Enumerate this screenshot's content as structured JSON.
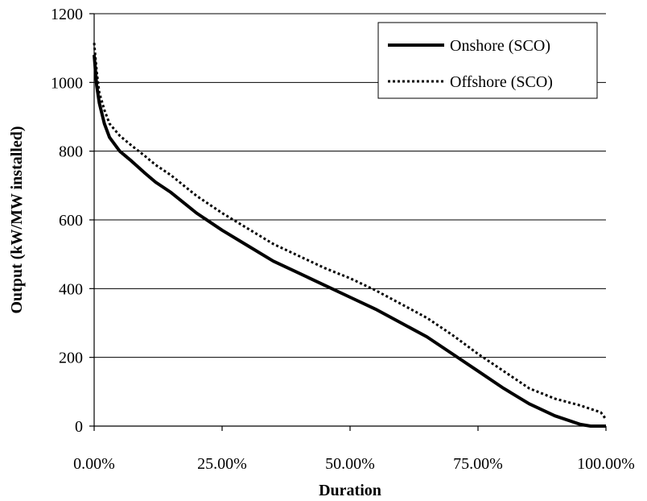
{
  "chart_data": {
    "type": "line",
    "title": "",
    "xlabel": "Duration",
    "ylabel": "Output (kW/MW installed)",
    "xlim": [
      0,
      100
    ],
    "ylim": [
      0,
      1200
    ],
    "x_tick_values": [
      0,
      25,
      50,
      75,
      100
    ],
    "x_tick_labels": [
      "0.00%",
      "25.00%",
      "50.00%",
      "75.00%",
      "100.00%"
    ],
    "y_tick_values": [
      0,
      200,
      400,
      600,
      800,
      1000,
      1200
    ],
    "y_tick_labels": [
      "0",
      "200",
      "400",
      "600",
      "800",
      "1000",
      "1200"
    ],
    "grid": "horizontal",
    "legend_position": "top-right",
    "series": [
      {
        "name": "Onshore (SCO)",
        "style": "solid",
        "color": "#000000",
        "x": [
          0,
          0.5,
          1,
          2,
          3,
          5,
          7,
          10,
          12,
          15,
          20,
          25,
          30,
          35,
          40,
          45,
          50,
          55,
          60,
          65,
          70,
          75,
          80,
          85,
          90,
          95,
          97,
          99,
          100
        ],
        "y": [
          1080,
          990,
          940,
          880,
          840,
          800,
          775,
          735,
          710,
          680,
          620,
          570,
          525,
          480,
          445,
          410,
          375,
          340,
          300,
          260,
          210,
          160,
          110,
          65,
          30,
          5,
          0,
          0,
          0
        ]
      },
      {
        "name": "Offshore (SCO)",
        "style": "dotted",
        "color": "#000000",
        "x": [
          0,
          0.5,
          1,
          2,
          3,
          5,
          7,
          10,
          12,
          15,
          20,
          25,
          30,
          35,
          40,
          45,
          50,
          55,
          60,
          65,
          70,
          75,
          80,
          85,
          90,
          95,
          97,
          99,
          100
        ],
        "y": [
          1115,
          1030,
          970,
          920,
          880,
          845,
          820,
          785,
          760,
          730,
          670,
          620,
          575,
          530,
          495,
          460,
          430,
          395,
          355,
          315,
          265,
          210,
          160,
          110,
          80,
          60,
          50,
          40,
          20
        ]
      }
    ]
  }
}
